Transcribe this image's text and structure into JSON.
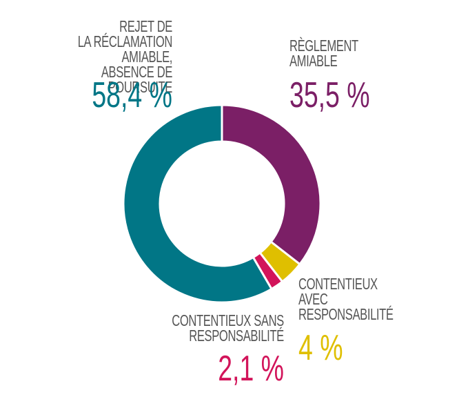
{
  "chart_data": {
    "type": "donut",
    "categories": [
      "RÈGLEMENT\nAMIABLE",
      "CONTENTIEUX\nAVEC\nRESPONSABILITÉ",
      "CONTENTIEUX SANS\nRESPONSABILITÉ",
      "REJET DE\nLA RÉCLAMATION AMIABLE,\nABSENCE DE POURSUITE"
    ],
    "values": [
      35.5,
      4,
      2.1,
      58.4
    ],
    "value_labels": [
      "35,5 %",
      "4 %",
      "2,1 %",
      "58,4 %"
    ],
    "colors": [
      "#7b1f66",
      "#dfbf00",
      "#d2145a",
      "#017686"
    ]
  }
}
